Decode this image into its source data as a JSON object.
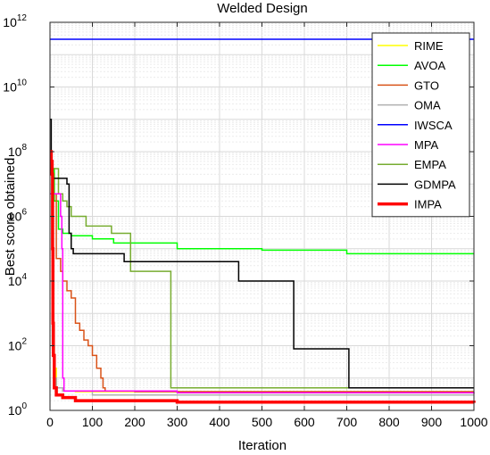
{
  "chart_data": {
    "type": "line",
    "title": "Welded Design",
    "xlabel": "Iteration",
    "ylabel": "Best score obtained",
    "xlim": [
      0,
      1000
    ],
    "ylim_log10": [
      0,
      12
    ],
    "yscale": "log",
    "grid": true,
    "legend_position": "top-right",
    "x_ticks": [
      "0",
      "100",
      "200",
      "300",
      "400",
      "500",
      "600",
      "700",
      "800",
      "900",
      "1000"
    ],
    "y_ticks": [
      {
        "base": "10",
        "exp": "0"
      },
      {
        "base": "10",
        "exp": "2"
      },
      {
        "base": "10",
        "exp": "4"
      },
      {
        "base": "10",
        "exp": "6"
      },
      {
        "base": "10",
        "exp": "8"
      },
      {
        "base": "10",
        "exp": "10"
      },
      {
        "base": "10",
        "exp": "12"
      }
    ],
    "series": [
      {
        "name": "RIME",
        "color": "#ffff00",
        "points": [
          [
            1,
            1000000
          ],
          [
            5,
            1000000
          ],
          [
            8,
            100
          ],
          [
            10,
            20
          ],
          [
            15,
            5
          ],
          [
            30,
            4
          ],
          [
            60,
            3.8
          ],
          [
            1000,
            3.8
          ]
        ]
      },
      {
        "name": "AVOA",
        "color": "#00ff00",
        "points": [
          [
            1,
            30000000
          ],
          [
            8,
            30000000
          ],
          [
            10,
            3000000
          ],
          [
            20,
            400000
          ],
          [
            30,
            300000
          ],
          [
            50,
            250000
          ],
          [
            100,
            200000
          ],
          [
            150,
            150000
          ],
          [
            300,
            100000
          ],
          [
            500,
            90000
          ],
          [
            700,
            70000
          ],
          [
            1000,
            70000
          ]
        ]
      },
      {
        "name": "GTO",
        "color": "#d95319",
        "points": [
          [
            1,
            5000000
          ],
          [
            10,
            5000000
          ],
          [
            15,
            50000
          ],
          [
            25,
            20000
          ],
          [
            30,
            10000
          ],
          [
            40,
            5000
          ],
          [
            50,
            3000
          ],
          [
            60,
            500
          ],
          [
            70,
            300
          ],
          [
            80,
            150
          ],
          [
            90,
            100
          ],
          [
            100,
            50
          ],
          [
            110,
            20
          ],
          [
            120,
            10
          ],
          [
            125,
            5
          ],
          [
            130,
            4
          ],
          [
            200,
            3.8
          ],
          [
            1000,
            3.8
          ]
        ]
      },
      {
        "name": "OMA",
        "color": "#b0b0b0",
        "points": [
          [
            1,
            5000000
          ],
          [
            5,
            100
          ],
          [
            10,
            10
          ],
          [
            15,
            5
          ],
          [
            30,
            4
          ],
          [
            100,
            3
          ],
          [
            1000,
            3
          ]
        ]
      },
      {
        "name": "IWSCA",
        "color": "#0000ff",
        "points": [
          [
            1,
            300000000000
          ],
          [
            1000,
            300000000000
          ]
        ]
      },
      {
        "name": "MPA",
        "color": "#ff00ff",
        "points": [
          [
            1,
            5000000
          ],
          [
            20,
            5000000
          ],
          [
            25,
            1000000
          ],
          [
            28,
            100000
          ],
          [
            30,
            10
          ],
          [
            33,
            4
          ],
          [
            100,
            4
          ],
          [
            300,
            3.5
          ],
          [
            1000,
            3.3
          ]
        ]
      },
      {
        "name": "EMPA",
        "color": "#77ac30",
        "points": [
          [
            1,
            30000000
          ],
          [
            15,
            30000000
          ],
          [
            20,
            5000000
          ],
          [
            30,
            3000000
          ],
          [
            40,
            2000000
          ],
          [
            50,
            1000000
          ],
          [
            80,
            1000000
          ],
          [
            85,
            500000
          ],
          [
            140,
            500000
          ],
          [
            145,
            300000
          ],
          [
            185,
            300000
          ],
          [
            190,
            20000
          ],
          [
            280,
            20000
          ],
          [
            285,
            5
          ],
          [
            1000,
            5
          ]
        ]
      },
      {
        "name": "GDMPA",
        "color": "#000000",
        "points": [
          [
            1,
            1000000000
          ],
          [
            3,
            20000000
          ],
          [
            5,
            15000000
          ],
          [
            30,
            15000000
          ],
          [
            40,
            10000000
          ],
          [
            45,
            300000
          ],
          [
            50,
            100000
          ],
          [
            55,
            70000
          ],
          [
            170,
            70000
          ],
          [
            175,
            40000
          ],
          [
            440,
            40000
          ],
          [
            445,
            10000
          ],
          [
            570,
            10000
          ],
          [
            575,
            80
          ],
          [
            700,
            80
          ],
          [
            705,
            5
          ],
          [
            1000,
            5
          ]
        ]
      },
      {
        "name": "IMPA",
        "color": "#ff0000",
        "points": [
          [
            1,
            100000000
          ],
          [
            3,
            50000000
          ],
          [
            5,
            20000000
          ],
          [
            6,
            100000
          ],
          [
            7,
            500
          ],
          [
            8,
            50
          ],
          [
            10,
            5
          ],
          [
            15,
            3
          ],
          [
            30,
            2.5
          ],
          [
            60,
            2
          ],
          [
            300,
            1.8
          ],
          [
            1000,
            1.7
          ]
        ]
      }
    ]
  }
}
